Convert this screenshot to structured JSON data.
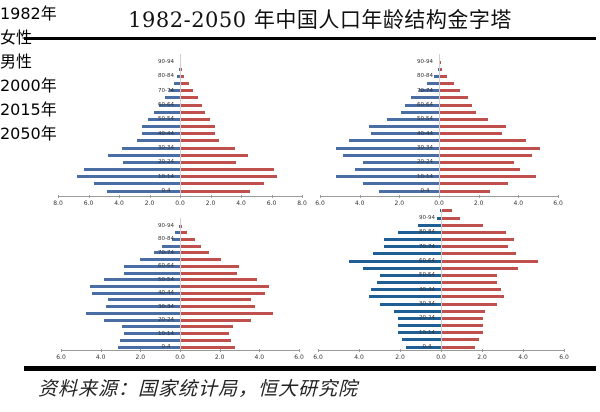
{
  "page": {
    "title": "1982-2050 年中国人口年龄结构金字塔",
    "source": "资料来源：国家统计局，恒大研究院"
  },
  "colors": {
    "female": "#4a6da3",
    "male": "#c0504d",
    "female_2050": "#1f5f95"
  },
  "chart_data": [
    {
      "type": "bar",
      "orientation": "horizontal-pyramid",
      "title": "1982年",
      "legend": [
        "女性",
        "男性"
      ],
      "legend_position": "top-left",
      "xlim": [
        -8,
        8
      ],
      "xticks": [
        "8.0",
        "6.0",
        "4.0",
        "2.0",
        "0.0",
        "2.0",
        "4.0",
        "6.0",
        "8.0"
      ],
      "categories": [
        "0-4",
        "5-9",
        "10-14",
        "15-19",
        "20-24",
        "25-29",
        "30-34",
        "35-39",
        "40-44",
        "45-49",
        "50-54",
        "55-59",
        "60-64",
        "65-69",
        "70-74",
        "75-79",
        "80-84",
        "85-89",
        "90-94"
      ],
      "labeled_categories": [
        "0-4",
        "10-14",
        "20-24",
        "30-34",
        "40-44",
        "50-54",
        "60-64",
        "70-74",
        "80-84",
        "90-94"
      ],
      "series": [
        {
          "name": "女性",
          "side": "left",
          "values": [
            4.8,
            5.6,
            6.7,
            6.3,
            3.7,
            4.7,
            3.8,
            2.8,
            2.5,
            2.5,
            2.1,
            1.7,
            1.4,
            1.0,
            0.7,
            0.4,
            0.2,
            0.05,
            0.0
          ]
        },
        {
          "name": "男性",
          "side": "right",
          "values": [
            4.5,
            5.4,
            6.3,
            6.1,
            3.6,
            4.4,
            3.5,
            2.5,
            2.2,
            2.2,
            1.9,
            1.6,
            1.4,
            1.1,
            0.8,
            0.5,
            0.2,
            0.05,
            0.0
          ]
        }
      ],
      "grid": false
    },
    {
      "type": "bar",
      "orientation": "horizontal-pyramid",
      "title": "2000年",
      "xlim": [
        -6,
        6
      ],
      "xticks": [
        "6.0",
        "4.0",
        "2.0",
        "0.0",
        "2.0",
        "4.0",
        "6.0"
      ],
      "categories": [
        "0-4",
        "5-9",
        "10-14",
        "15-19",
        "20-24",
        "25-29",
        "30-34",
        "35-39",
        "40-44",
        "45-49",
        "50-54",
        "55-59",
        "60-64",
        "65-69",
        "70-74",
        "75-79",
        "80-84",
        "85-89",
        "90-94"
      ],
      "labeled_categories": [
        "0-4",
        "10-14",
        "20-24",
        "30-34",
        "40-44",
        "50-54",
        "60-64",
        "70-74",
        "80-84",
        "90-94"
      ],
      "series": [
        {
          "name": "女性",
          "side": "left",
          "values": [
            3.0,
            3.8,
            5.2,
            4.2,
            3.8,
            4.8,
            5.2,
            4.5,
            3.4,
            3.5,
            2.6,
            1.9,
            1.7,
            1.4,
            1.0,
            0.6,
            0.25,
            0.05,
            0.0
          ]
        },
        {
          "name": "男性",
          "side": "right",
          "values": [
            2.5,
            3.4,
            4.8,
            4.0,
            3.7,
            4.6,
            5.0,
            4.3,
            3.1,
            3.3,
            2.4,
            1.8,
            1.6,
            1.4,
            1.0,
            0.7,
            0.35,
            0.1,
            0.02
          ]
        }
      ],
      "grid": false
    },
    {
      "type": "bar",
      "orientation": "horizontal-pyramid",
      "title": "2015年",
      "xlim": [
        -6,
        6
      ],
      "xticks": [
        "6.0",
        "4.0",
        "2.0",
        "0.0",
        "2.0",
        "4.0",
        "6.0"
      ],
      "categories": [
        "0-4",
        "5-9",
        "10-14",
        "15-19",
        "20-24",
        "25-29",
        "30-34",
        "35-39",
        "40-44",
        "45-49",
        "50-54",
        "55-59",
        "60-64",
        "65-69",
        "70-74",
        "75-79",
        "80-84",
        "85-89",
        "90-94"
      ],
      "labeled_categories": [
        "0-4",
        "10-14",
        "20-24",
        "30-34",
        "40-44",
        "50-54",
        "60-64",
        "70-74",
        "80-84",
        "90-94"
      ],
      "series": [
        {
          "name": "女性",
          "side": "left",
          "values": [
            3.1,
            3.0,
            2.8,
            2.9,
            3.8,
            4.7,
            3.7,
            3.6,
            4.4,
            4.5,
            3.8,
            2.8,
            2.8,
            2.0,
            1.3,
            0.9,
            0.4,
            0.25,
            0.02
          ]
        },
        {
          "name": "男性",
          "side": "right",
          "values": [
            2.7,
            2.5,
            2.4,
            2.6,
            3.5,
            4.6,
            3.7,
            3.5,
            4.2,
            4.4,
            3.8,
            2.8,
            2.9,
            2.0,
            1.4,
            1.0,
            0.7,
            0.3,
            0.05
          ]
        }
      ],
      "grid": false
    },
    {
      "type": "bar",
      "orientation": "horizontal-pyramid",
      "title": "2050年",
      "xlim": [
        -6,
        6
      ],
      "xticks": [
        "6.0",
        "4.0",
        "2.0",
        "0.0",
        "2.0",
        "4.0",
        "6.0"
      ],
      "categories": [
        "0-4",
        "5-9",
        "10-14",
        "15-19",
        "20-24",
        "25-29",
        "30-34",
        "35-39",
        "40-44",
        "45-49",
        "50-54",
        "55-59",
        "60-64",
        "65-69",
        "70-74",
        "75-79",
        "80-84",
        "85-89",
        "90-94",
        "95+"
      ],
      "labeled_categories": [
        "0-4",
        "10-14",
        "20-24",
        "30-34",
        "40-44",
        "50-54",
        "60-64",
        "70-74",
        "80-84",
        "90-94"
      ],
      "series": [
        {
          "name": "女性",
          "side": "left",
          "values": [
            1.7,
            1.9,
            2.1,
            2.1,
            2.1,
            2.3,
            3.0,
            3.5,
            3.4,
            3.1,
            3.0,
            3.8,
            4.5,
            3.3,
            2.8,
            2.8,
            2.1,
            1.1,
            0.2,
            0.05
          ]
        },
        {
          "name": "男性",
          "side": "right",
          "values": [
            1.6,
            1.8,
            2.0,
            2.0,
            2.0,
            2.1,
            2.7,
            3.0,
            2.9,
            2.7,
            2.7,
            3.7,
            4.7,
            3.6,
            3.2,
            3.5,
            3.1,
            2.0,
            0.9,
            0.5
          ]
        }
      ],
      "grid": false
    }
  ]
}
